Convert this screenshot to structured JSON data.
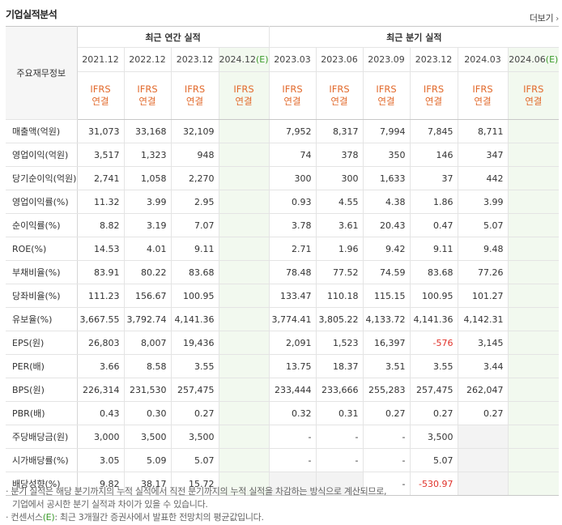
{
  "section": {
    "title": "기업실적분석",
    "more_label": "더보기"
  },
  "table": {
    "corner_label": "주요재무정보",
    "annual_header": "최근 연간 실적",
    "quarter_header": "최근 분기 실적",
    "periods": [
      "2021.12",
      "2022.12",
      "2023.12",
      "2024.12",
      "2023.03",
      "2023.06",
      "2023.09",
      "2023.12",
      "2024.03",
      "2024.06"
    ],
    "estimate_marker": "(E)",
    "ifrs_line1": "IFRS",
    "ifrs_line2": "연결",
    "rows": [
      {
        "label": "매출액(억원)",
        "values": [
          "31,073",
          "33,168",
          "32,109",
          "",
          "7,952",
          "8,317",
          "7,994",
          "7,845",
          "8,711",
          ""
        ]
      },
      {
        "label": "영업이익(억원)",
        "values": [
          "3,517",
          "1,323",
          "948",
          "",
          "74",
          "378",
          "350",
          "146",
          "347",
          ""
        ]
      },
      {
        "label": "당기순이익(억원)",
        "values": [
          "2,741",
          "1,058",
          "2,270",
          "",
          "300",
          "300",
          "1,633",
          "37",
          "442",
          ""
        ]
      },
      {
        "label": "영업이익률(%)",
        "values": [
          "11.32",
          "3.99",
          "2.95",
          "",
          "0.93",
          "4.55",
          "4.38",
          "1.86",
          "3.99",
          ""
        ]
      },
      {
        "label": "순이익률(%)",
        "values": [
          "8.82",
          "3.19",
          "7.07",
          "",
          "3.78",
          "3.61",
          "20.43",
          "0.47",
          "5.07",
          ""
        ]
      },
      {
        "label": "ROE(%)",
        "values": [
          "14.53",
          "4.01",
          "9.11",
          "",
          "2.71",
          "1.96",
          "9.42",
          "9.11",
          "9.48",
          ""
        ]
      },
      {
        "label": "부채비율(%)",
        "values": [
          "83.91",
          "80.22",
          "83.68",
          "",
          "78.48",
          "77.52",
          "74.59",
          "83.68",
          "77.26",
          ""
        ]
      },
      {
        "label": "당좌비율(%)",
        "values": [
          "111.23",
          "156.67",
          "100.95",
          "",
          "133.47",
          "110.18",
          "115.15",
          "100.95",
          "101.27",
          ""
        ]
      },
      {
        "label": "유보율(%)",
        "values": [
          "3,667.55",
          "3,792.74",
          "4,141.36",
          "",
          "3,774.41",
          "3,805.22",
          "4,133.72",
          "4,141.36",
          "4,142.31",
          ""
        ]
      },
      {
        "label": "EPS(원)",
        "values": [
          "26,803",
          "8,007",
          "19,436",
          "",
          "2,091",
          "1,523",
          "16,397",
          "-576",
          "3,145",
          ""
        ]
      },
      {
        "label": "PER(배)",
        "values": [
          "3.66",
          "8.58",
          "3.55",
          "",
          "13.75",
          "18.37",
          "3.51",
          "3.55",
          "3.44",
          ""
        ]
      },
      {
        "label": "BPS(원)",
        "values": [
          "226,314",
          "231,530",
          "257,475",
          "",
          "233,444",
          "233,666",
          "255,283",
          "257,475",
          "262,047",
          ""
        ]
      },
      {
        "label": "PBR(배)",
        "values": [
          "0.43",
          "0.30",
          "0.27",
          "",
          "0.32",
          "0.31",
          "0.27",
          "0.27",
          "0.27",
          ""
        ]
      },
      {
        "label": "주당배당금(원)",
        "values": [
          "3,000",
          "3,500",
          "3,500",
          "",
          "-",
          "-",
          "-",
          "3,500",
          "",
          ""
        ]
      },
      {
        "label": "시가배당률(%)",
        "values": [
          "3.05",
          "5.09",
          "5.07",
          "",
          "-",
          "-",
          "-",
          "5.07",
          "",
          ""
        ]
      },
      {
        "label": "배당성향(%)",
        "values": [
          "9.82",
          "38.17",
          "15.72",
          "",
          "",
          "",
          "-",
          "-530.97",
          "",
          ""
        ]
      }
    ]
  },
  "notes": {
    "line1": "분기 실적은 해당 분기까지의 누적 실적에서 직전 분기까지의 누적 실적을 차감하는 방식으로 계산되므로,",
    "line2": "기업에서 공시한 분기 실적과 차이가 있을 수 있습니다.",
    "line3_pre": "컨센서스",
    "line3_marker": "(E)",
    "line3_post": ": 최근 3개월간 증권사에서 발표한 전망치의 평균값입니다."
  },
  "colors": {
    "ifrs": "#e26a2c",
    "negative": "#e0322a",
    "estimate_marker": "#3a9a2a",
    "estimate_bg": "#f2f9ef"
  }
}
